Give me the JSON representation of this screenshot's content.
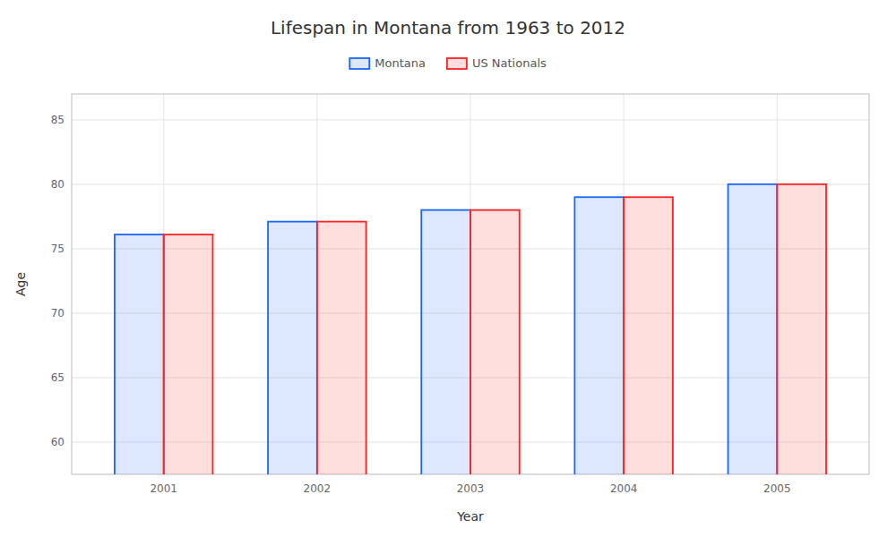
{
  "chart_data": {
    "type": "bar",
    "title": "Lifespan in Montana from 1963 to 2012",
    "x_label": "Year",
    "y_label": "Age",
    "categories": [
      "2001",
      "2002",
      "2003",
      "2004",
      "2005"
    ],
    "series": [
      {
        "name": "Montana",
        "color": "#1a66ff",
        "values": [
          76.1,
          77.1,
          78.0,
          79.0,
          80.0
        ]
      },
      {
        "name": "US Nationals",
        "color": "#ff2222",
        "values": [
          76.1,
          77.1,
          78.0,
          79.0,
          80.0
        ]
      }
    ],
    "ylim": [
      57.5,
      87
    ],
    "yticks": [
      60,
      65,
      70,
      75,
      80,
      85
    ],
    "grid": true,
    "legend": "top"
  }
}
